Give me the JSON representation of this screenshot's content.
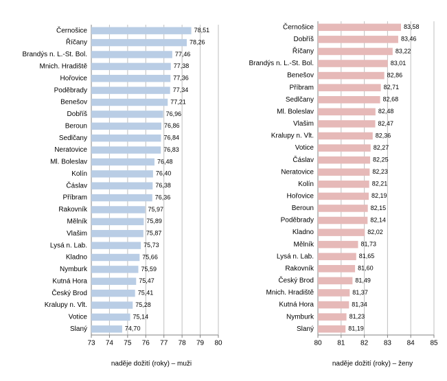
{
  "chart_data": [
    {
      "type": "bar",
      "orientation": "horizontal",
      "xlabel": "naděje dožití (roky) – muži",
      "color": "#b9cde5",
      "categories": [
        "Černošice",
        "Říčany",
        "Brandýs n. L.-St. Bol.",
        "Mnich. Hradiště",
        "Hořovice",
        "Poděbrady",
        "Benešov",
        "Dobříš",
        "Beroun",
        "Sedlčany",
        "Neratovice",
        "Ml. Boleslav",
        "Kolín",
        "Čáslav",
        "Příbram",
        "Rakovník",
        "Mělník",
        "Vlašim",
        "Lysá n. Lab.",
        "Kladno",
        "Nymburk",
        "Kutná Hora",
        "Český Brod",
        "Kralupy n. Vlt.",
        "Votice",
        "Slaný"
      ],
      "values": [
        78.51,
        78.26,
        77.46,
        77.38,
        77.36,
        77.34,
        77.21,
        76.96,
        76.86,
        76.84,
        76.83,
        76.48,
        76.4,
        76.38,
        76.36,
        75.97,
        75.89,
        75.87,
        75.73,
        75.66,
        75.59,
        75.47,
        75.41,
        75.28,
        75.14,
        74.7
      ],
      "value_labels": [
        "78,51",
        "78,26",
        "77,46",
        "77,38",
        "77,36",
        "77,34",
        "77,21",
        "76,96",
        "76,86",
        "76,84",
        "76,83",
        "76,48",
        "76,40",
        "76,38",
        "76,36",
        "75,97",
        "75,89",
        "75,87",
        "75,73",
        "75,66",
        "75,59",
        "75,47",
        "75,41",
        "75,28",
        "75,14",
        "74,70"
      ],
      "xlim": [
        73,
        80
      ],
      "xticks": [
        73,
        74,
        75,
        76,
        77,
        78,
        79,
        80
      ],
      "grid": true
    },
    {
      "type": "bar",
      "orientation": "horizontal",
      "xlabel": "naděje dožití (roky) – ženy",
      "color": "#e6b9b8",
      "categories": [
        "Černošice",
        "Dobříš",
        "Říčany",
        "Brandýs n. L.-St. Bol.",
        "Benešov",
        "Příbram",
        "Sedlčany",
        "Ml. Boleslav",
        "Vlašim",
        "Kralupy n. Vlt.",
        "Votice",
        "Čáslav",
        "Neratovice",
        "Kolín",
        "Hořovice",
        "Beroun",
        "Poděbrady",
        "Kladno",
        "Mělník",
        "Lysá n. Lab.",
        "Rakovník",
        "Český Brod",
        "Mnich. Hradiště",
        "Kutná Hora",
        "Nymburk",
        "Slaný"
      ],
      "values": [
        83.58,
        83.46,
        83.22,
        83.01,
        82.86,
        82.71,
        82.68,
        82.48,
        82.47,
        82.36,
        82.27,
        82.25,
        82.23,
        82.21,
        82.19,
        82.15,
        82.14,
        82.02,
        81.73,
        81.65,
        81.6,
        81.49,
        81.37,
        81.34,
        81.23,
        81.19
      ],
      "value_labels": [
        "83,58",
        "83,46",
        "83,22",
        "83,01",
        "82,86",
        "82,71",
        "82,68",
        "82,48",
        "82,47",
        "82,36",
        "82,27",
        "82,25",
        "82,23",
        "82,21",
        "82,19",
        "82,15",
        "82,14",
        "82,02",
        "81,73",
        "81,65",
        "81,60",
        "81,49",
        "81,37",
        "81,34",
        "81,23",
        "81,19"
      ],
      "xlim": [
        80,
        85
      ],
      "xticks": [
        80,
        81,
        82,
        83,
        84,
        85
      ],
      "grid": true
    }
  ]
}
